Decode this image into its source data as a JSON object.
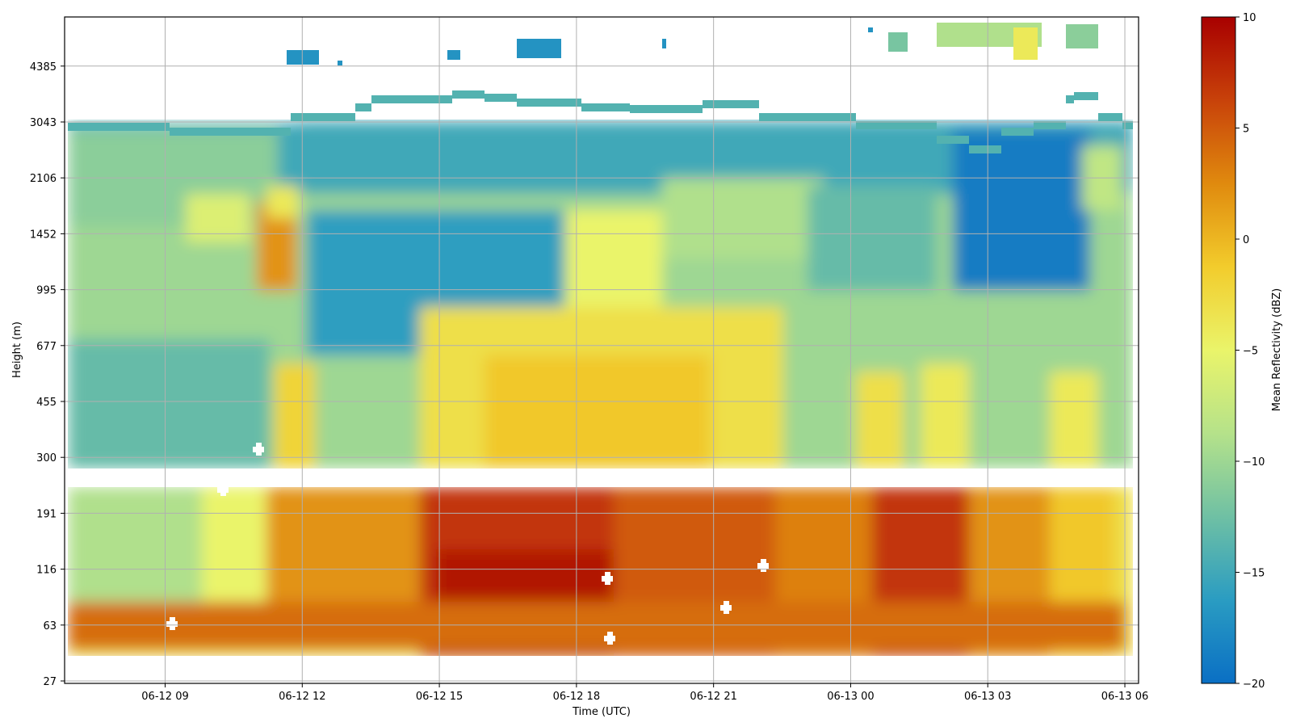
{
  "chart_data": {
    "type": "heatmap",
    "title": "",
    "xlabel": "Time (UTC)",
    "ylabel": "Height (m)",
    "x_ticks": [
      "06-12 09",
      "06-12 12",
      "06-12 15",
      "06-12 18",
      "06-12 21",
      "06-13 00",
      "06-13 03",
      "06-13 06"
    ],
    "x_tick_hours": [
      9,
      12,
      15,
      18,
      21,
      24,
      27,
      30
    ],
    "x_range_hours": [
      6.8,
      30.3
    ],
    "y_ticks": [
      "27",
      "63",
      "116",
      "191",
      "300",
      "455",
      "677",
      "995",
      "1452",
      "2106",
      "3043",
      "4385"
    ],
    "y_scale": "nonlinear (each labeled height at equal spacing)",
    "grid": true,
    "colorbar": {
      "label": "Mean Reflectivity (dBZ)",
      "min": -20,
      "max": 10,
      "ticks": [
        "10",
        "5",
        "0",
        "−5",
        "−10",
        "−15",
        "−20"
      ],
      "tick_values": [
        10,
        5,
        0,
        -5,
        -10,
        -15,
        -20
      ],
      "colormap_stops": [
        "#0a6fc4",
        "#2a9cc2",
        "#6fc0a4",
        "#b5e28a",
        "#eaf46a",
        "#f2cc2c",
        "#e08a0e",
        "#c8420a",
        "#a80000"
      ]
    },
    "data_gap_heights_m": [
      230,
      260
    ],
    "summary_regions": [
      {
        "time": "06-12 07 to 06-12 11",
        "height": "30-250 m",
        "dbz_approx": -9
      },
      {
        "time": "06-12 11:30 to 06-12 12:00",
        "height": "1000-2000 m",
        "dbz_approx": 2
      },
      {
        "time": "06-12 15 to 06-12 20",
        "height": "30-150 m",
        "dbz_approx": 8
      },
      {
        "time": "06-12 15 to 06-12 21",
        "height": "300-900 m",
        "dbz_approx": -3
      },
      {
        "time": "06-12 17 to 06-12 20",
        "height": "900-1800 m",
        "dbz_approx": -5
      },
      {
        "time": "06-12 12 to 06-13 06",
        "height": "2000-3300 m",
        "dbz_approx": -15
      },
      {
        "time": "06-13 03 to 06-13 03:30",
        "height": "1500-2800 m",
        "dbz_approx": -18
      },
      {
        "time": "06-13 01:30 to 06-13 02:30",
        "height": "30-250 m",
        "dbz_approx": 7
      }
    ]
  }
}
